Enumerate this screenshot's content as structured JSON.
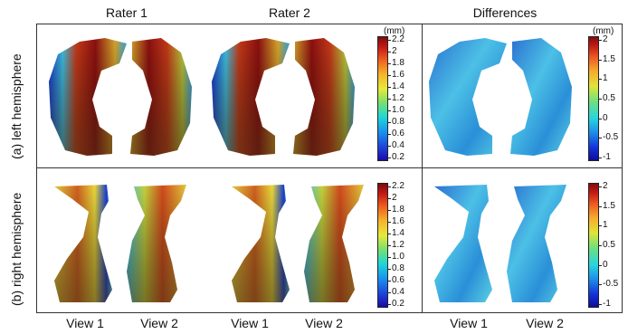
{
  "columns": {
    "rater1": "Rater 1",
    "rater2": "Rater 2",
    "differences": "Differences"
  },
  "rows": {
    "left": "(a) left hemisphere",
    "right": "(b) right hemisphere"
  },
  "views": [
    "View 1",
    "View 2",
    "View 1",
    "View 2",
    "View 1",
    "View 2"
  ],
  "colorbars": {
    "thickness": {
      "unit": "(mm)",
      "ticks": [
        "2.2",
        "2",
        "1.8",
        "1.6",
        "1.4",
        "1.2",
        "1.0",
        "0.8",
        "0.6",
        "0.4",
        "0.2"
      ]
    },
    "difference": {
      "unit": "(mm)",
      "ticks": [
        "2",
        "1.5",
        "1",
        "0.5",
        "0",
        "-0.5",
        "-1"
      ]
    }
  },
  "colors": {
    "thick_high": "#8b1010",
    "thick_mid": "#e8d83a",
    "thick_low": "#1a3fd0",
    "diff_base": "#2a8fd8"
  }
}
